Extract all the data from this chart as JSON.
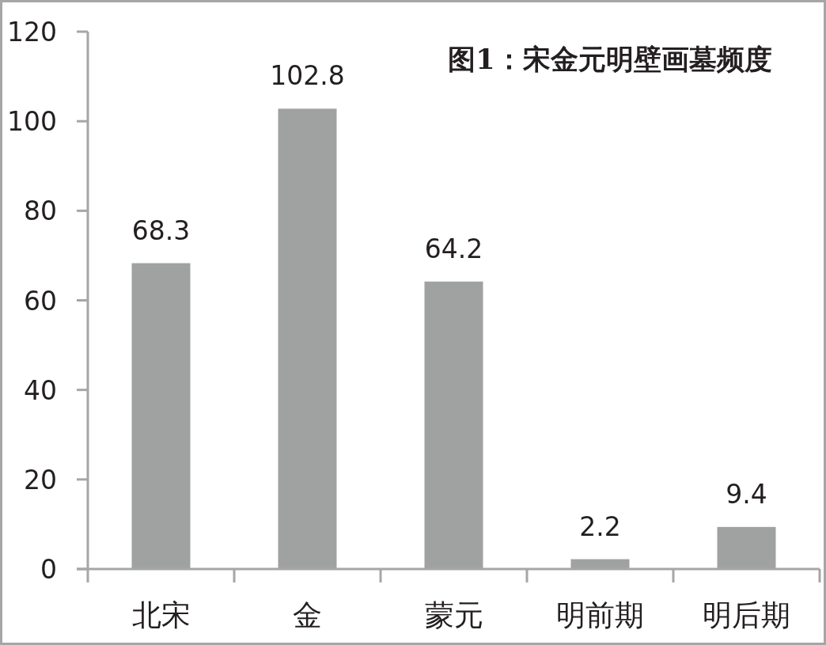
{
  "chart_data": {
    "type": "bar",
    "title": "图1：宋金元明壁画墓频度",
    "categories": [
      "北宋",
      "金",
      "蒙元",
      "明前期",
      "明后期"
    ],
    "values": [
      68.3,
      102.8,
      64.2,
      2.2,
      9.4
    ],
    "color": "#a0a2a1",
    "ylim": [
      0,
      120
    ],
    "yticks": [
      0,
      20,
      40,
      60,
      80,
      100,
      120
    ],
    "data_labels": true
  }
}
